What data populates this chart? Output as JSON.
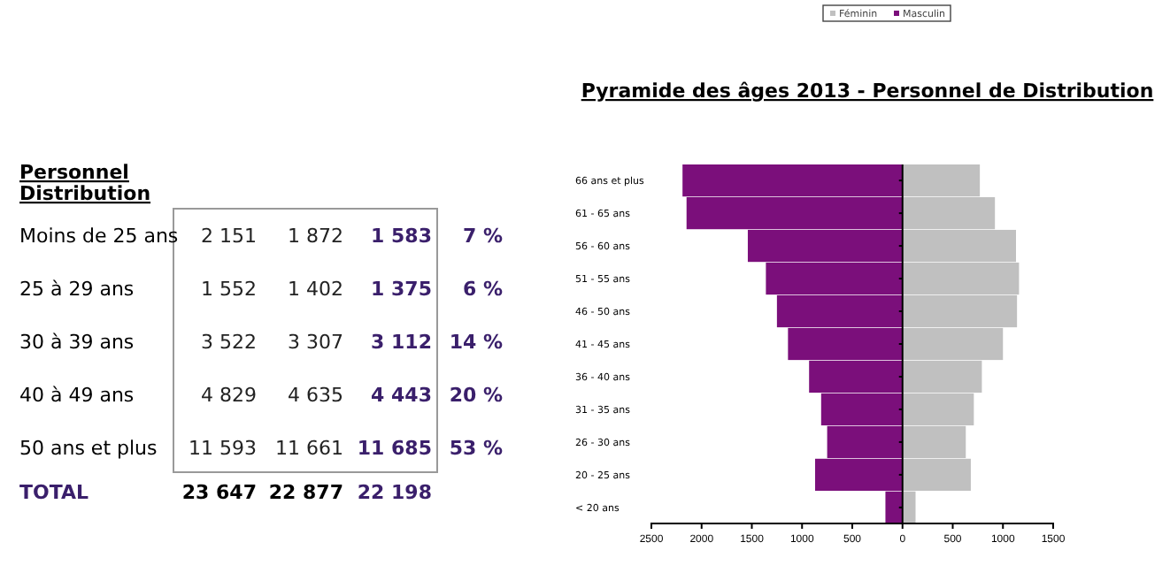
{
  "chart_data": [
    {
      "type": "other",
      "title": "Personnel Distribution",
      "categories": [
        "Moins de 25 ans",
        "25 à 29 ans",
        "30 à 39 ans",
        "40 à 49 ans",
        "50 ans et plus",
        "TOTAL"
      ],
      "series": [
        {
          "color": "#222222",
          "values": [
            2151,
            1552,
            3522,
            4829,
            11593,
            23647
          ],
          "value_labels": [
            "2 151",
            "1 552",
            "3 522",
            "4 829",
            "11 593",
            "23 647"
          ]
        },
        {
          "color": "#222222",
          "values": [
            1872,
            1402,
            3307,
            4635,
            11661,
            22877
          ],
          "value_labels": [
            "1 872",
            "1 402",
            "3 307",
            "4 635",
            "11 661",
            "22 877"
          ]
        },
        {
          "color": "#3a1f6b",
          "values": [
            1583,
            1375,
            3112,
            4443,
            11685,
            22198
          ],
          "value_labels": [
            "1 583",
            "1 375",
            "3 112",
            "4 443",
            "11 685",
            "22 198"
          ]
        },
        {
          "color": "#3a1f6b",
          "values": [
            7,
            6,
            14,
            20,
            53,
            null
          ],
          "value_labels": [
            "7 %",
            "6 %",
            "14 %",
            "20 %",
            "53 %",
            null
          ]
        }
      ]
    },
    {
      "type": "bar",
      "orientation": "horizontal",
      "title": "Pyramide des âges 2013 - Personnel de Distribution",
      "categories": [
        "66 ans et plus",
        "61 - 65 ans",
        "56 - 60 ans",
        "51 - 55 ans",
        "46 - 50 ans",
        "41 - 45 ans",
        "36 - 40 ans",
        "31 - 35 ans",
        "26 - 30 ans",
        "20 - 25 ans",
        "< 20 ans"
      ],
      "series": [
        {
          "name": "Féminin",
          "color": "#c0c0c0",
          "values": [
            770,
            920,
            1130,
            1160,
            1140,
            1000,
            790,
            710,
            630,
            680,
            130
          ]
        },
        {
          "name": "Masculin",
          "color": "#7b0f7b",
          "values": [
            -2190,
            -2150,
            -1540,
            -1360,
            -1250,
            -1140,
            -930,
            -810,
            -750,
            -870,
            -170
          ]
        }
      ],
      "xlim": [
        -2500,
        1500
      ],
      "xticks": [
        {
          "value": -2500,
          "label": "2500"
        },
        {
          "value": -2000,
          "label": "2000"
        },
        {
          "value": -1500,
          "label": "1500"
        },
        {
          "value": -1000,
          "label": "1000"
        },
        {
          "value": -500,
          "label": "500"
        },
        0,
        500,
        1000,
        1500
      ],
      "legend": "top",
      "stacked": true
    }
  ]
}
